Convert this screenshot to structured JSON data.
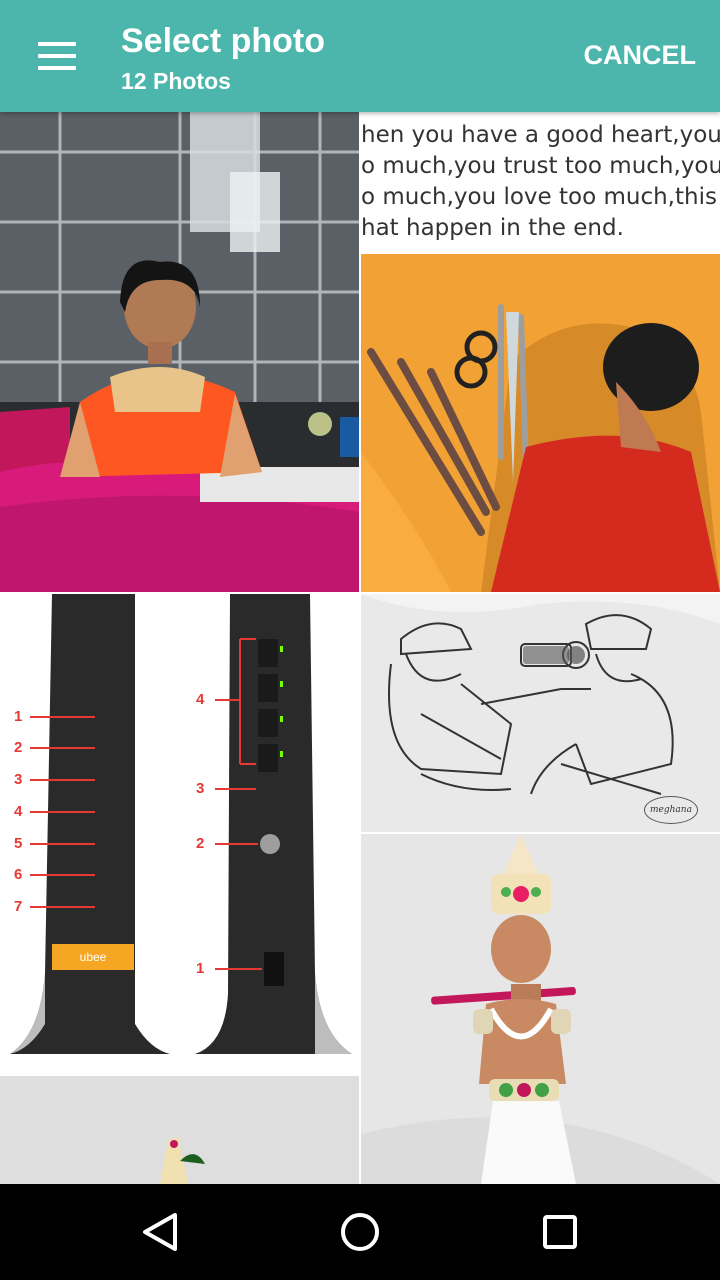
{
  "header": {
    "title": "Select photo",
    "subtitle": "12 Photos",
    "cancel_label": "CANCEL"
  },
  "photos": {
    "meme_lines": [
      "hen you have a good heart,you he",
      "o much,you trust too much,you gi",
      "o much,you love too much,this is",
      "hat happen in the end."
    ],
    "router_numbers_left": [
      "1",
      "2",
      "3",
      "4",
      "5",
      "6",
      "7"
    ],
    "router_numbers_right": [
      "4",
      "3",
      "2",
      "1"
    ],
    "brand": "ubee",
    "artist_signature": "meghana"
  },
  "colors": {
    "appbar": "#4db6ac",
    "navbar": "#000000"
  }
}
